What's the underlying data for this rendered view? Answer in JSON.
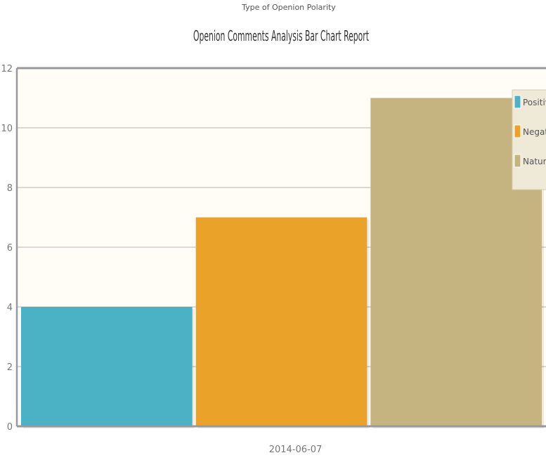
{
  "chart_data": {
    "type": "bar",
    "title": "Openion Comments Analysis Bar Chart Report",
    "subtitle": "Type of Openion Polarity",
    "categories": [
      "2014-06-07"
    ],
    "series": [
      {
        "name": "Positive",
        "values": [
          4
        ],
        "color": "#4bb2c5"
      },
      {
        "name": "Negative",
        "values": [
          7
        ],
        "color": "#eaa228"
      },
      {
        "name": "Natural",
        "values": [
          11
        ],
        "color": "#c5b47f"
      }
    ],
    "ylim": [
      0,
      12
    ],
    "yticks": [
      0,
      2,
      4,
      6,
      8,
      10,
      12
    ],
    "xlabel": "",
    "ylabel": "",
    "grid": true,
    "legend_position": "top-right"
  },
  "colors": {
    "plot_background": "#fffdf6",
    "grid": "#cccccc",
    "axis_line": "#999999",
    "legend_background": "#efe9d8"
  }
}
